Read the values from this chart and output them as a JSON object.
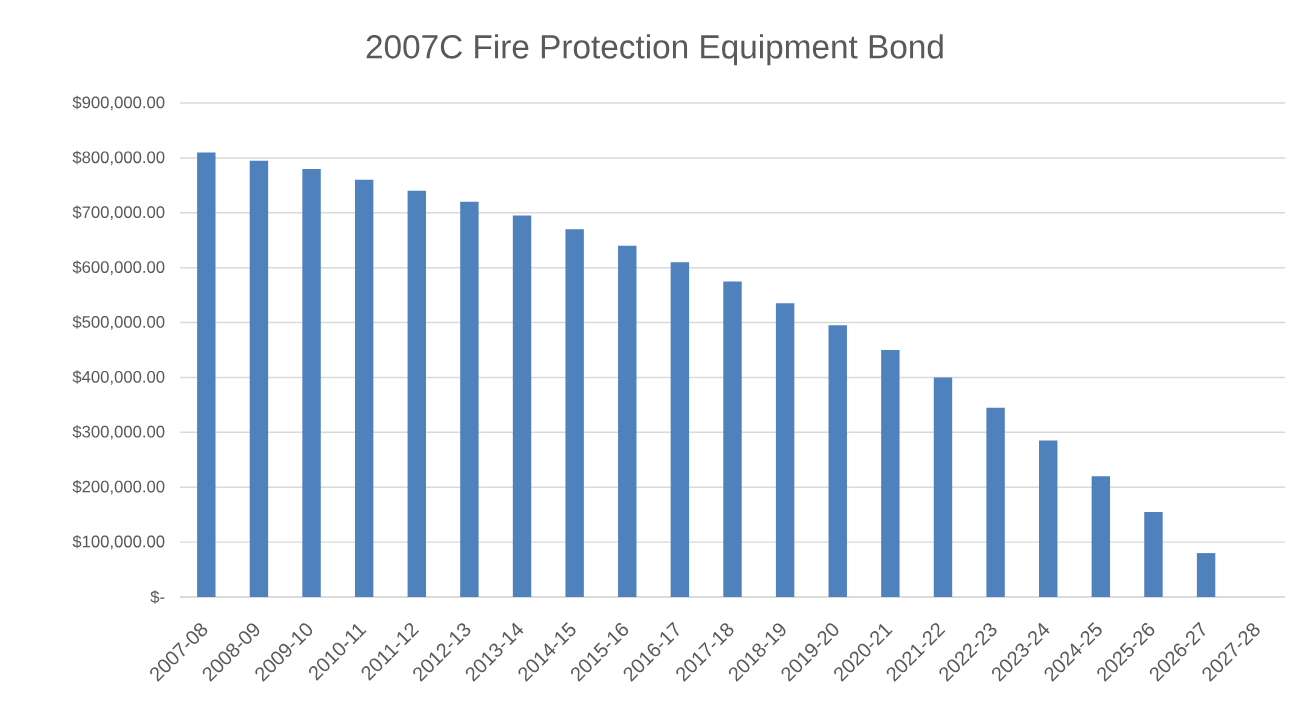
{
  "chart_data": {
    "type": "bar",
    "title": "2007C Fire Protection Equipment Bond",
    "categories": [
      "2007-08",
      "2008-09",
      "2009-10",
      "2010-11",
      "2011-12",
      "2012-13",
      "2013-14",
      "2014-15",
      "2015-16",
      "2016-17",
      "2017-18",
      "2018-19",
      "2019-20",
      "2020-21",
      "2021-22",
      "2022-23",
      "2023-24",
      "2024-25",
      "2025-26",
      "2026-27",
      "2027-28"
    ],
    "values": [
      810000,
      795000,
      780000,
      760000,
      740000,
      720000,
      695000,
      670000,
      640000,
      610000,
      575000,
      535000,
      495000,
      450000,
      400000,
      345000,
      285000,
      220000,
      155000,
      80000,
      null
    ],
    "color": "#4f81bd",
    "ylim": [
      0,
      900000
    ],
    "yticks": [
      {
        "value": 0,
        "label": "$-"
      },
      {
        "value": 100000,
        "label": "$100,000.00"
      },
      {
        "value": 200000,
        "label": "$200,000.00"
      },
      {
        "value": 300000,
        "label": "$300,000.00"
      },
      {
        "value": 400000,
        "label": "$400,000.00"
      },
      {
        "value": 500000,
        "label": "$500,000.00"
      },
      {
        "value": 600000,
        "label": "$600,000.00"
      },
      {
        "value": 700000,
        "label": "$700,000.00"
      },
      {
        "value": 800000,
        "label": "$800,000.00"
      },
      {
        "value": 900000,
        "label": "$900,000.00"
      }
    ],
    "grid": "y"
  }
}
